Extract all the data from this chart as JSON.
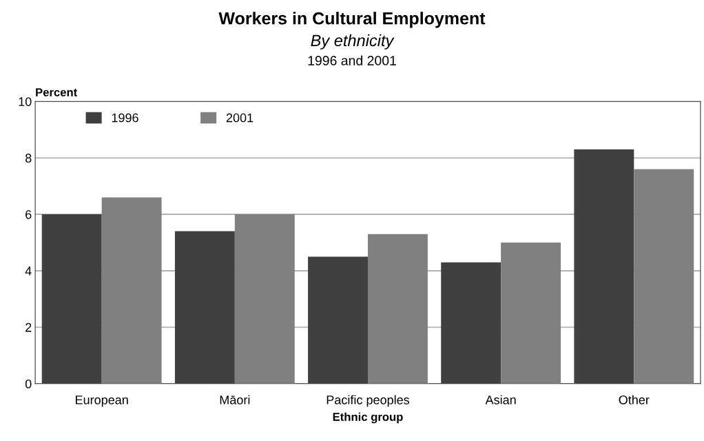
{
  "chart_data": {
    "type": "bar",
    "title": "Workers in Cultural Employment",
    "subtitle": "By ethnicity\n1996 and 2001",
    "xlabel": "Ethnic group",
    "ylabel": "Percent",
    "categories": [
      "European",
      "Māori",
      "Pacific peoples",
      "Asian",
      "Other"
    ],
    "series": [
      {
        "name": "1996",
        "color": "#404040",
        "values": [
          6.0,
          5.4,
          4.5,
          4.3,
          8.3
        ]
      },
      {
        "name": "2001",
        "color": "#808080",
        "values": [
          6.6,
          6.0,
          5.3,
          5.0,
          7.6
        ]
      }
    ],
    "ylim": [
      0,
      10
    ],
    "yticks": [
      0,
      2,
      4,
      6,
      8,
      10
    ],
    "grid": "y",
    "legend": "top left"
  }
}
